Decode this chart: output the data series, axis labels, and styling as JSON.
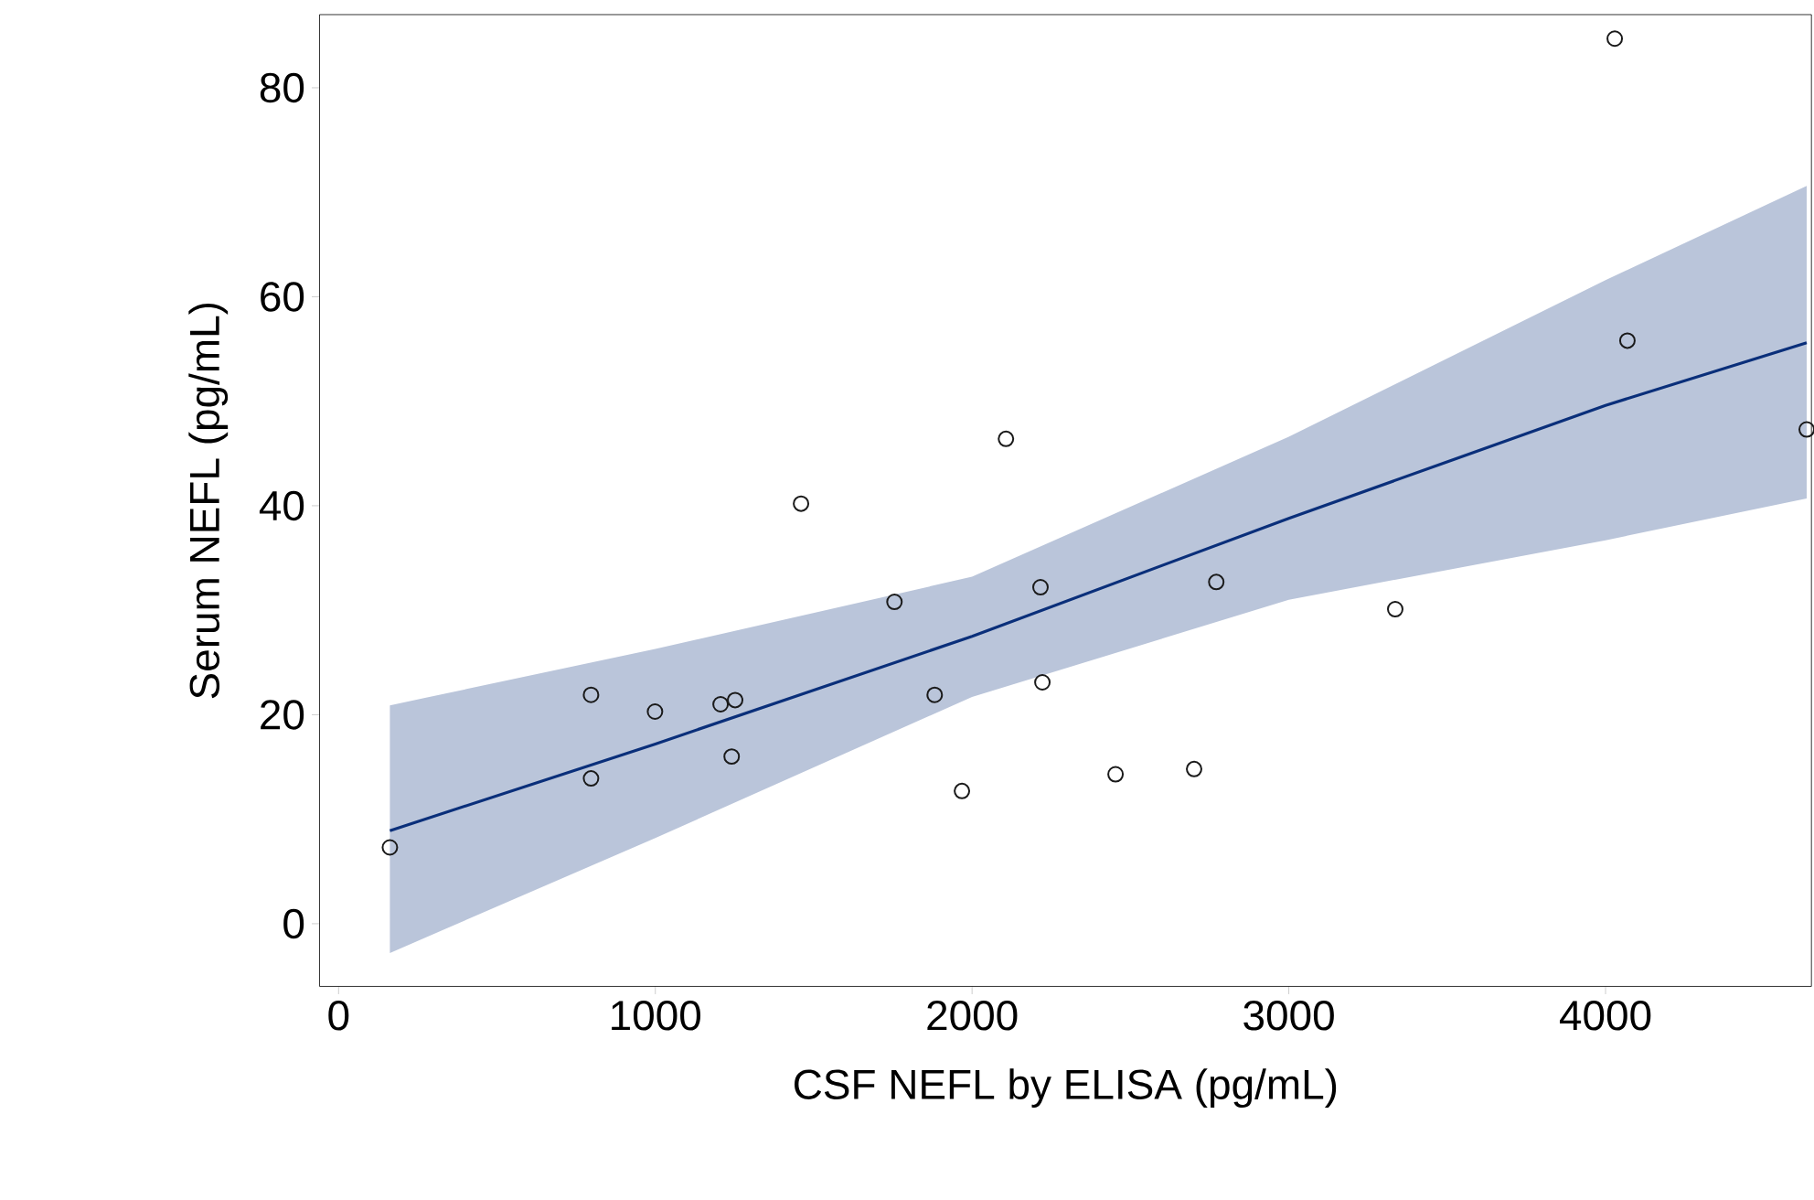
{
  "chart_data": {
    "type": "scatter",
    "xlabel": "CSF NEFL by ELISA (pg/mL)",
    "ylabel": "Serum NEFL (pg/mL)",
    "xlim": [
      -60,
      4650
    ],
    "ylim": [
      -6,
      87
    ],
    "xticks": [
      0,
      1000,
      2000,
      3000,
      4000
    ],
    "yticks": [
      0,
      20,
      40,
      60,
      80
    ],
    "grid": false,
    "series": [
      {
        "marker": "circle",
        "color": "#1a1a1a",
        "x": [
          162,
          797,
          797,
          999,
          1206,
          1252,
          1241,
          1460,
          1755,
          1882,
          1968,
          2107,
          2216,
          2222,
          2453,
          2701,
          2771,
          3336,
          4029,
          4069,
          4635
        ],
        "values": [
          7.3,
          21.9,
          13.9,
          20.3,
          21.0,
          21.4,
          16.0,
          40.2,
          30.8,
          21.9,
          12.7,
          46.4,
          32.2,
          23.1,
          14.3,
          14.8,
          32.7,
          30.1,
          84.7,
          55.8,
          47.3
        ]
      },
      {
        "type": "line",
        "color": "#0a2f7a",
        "x": [
          162,
          1000,
          2000,
          3000,
          4000,
          4635
        ],
        "values": [
          8.9,
          17.2,
          27.5,
          38.8,
          49.6,
          55.6
        ],
        "lower": [
          -2.8,
          8.2,
          21.7,
          31.0,
          36.7,
          40.7
        ],
        "upper": [
          20.9,
          26.3,
          33.2,
          46.6,
          61.6,
          70.6
        ]
      }
    ]
  }
}
